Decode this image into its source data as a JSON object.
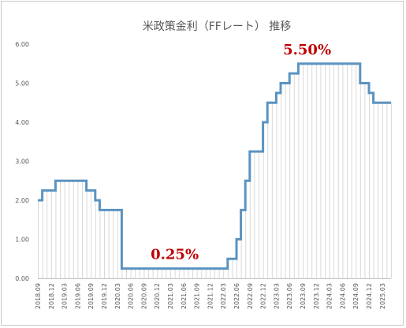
{
  "chart_data": {
    "type": "line",
    "step": true,
    "title": "米政策金利（FFレート） 推移",
    "xlabel": "",
    "ylabel": "",
    "ylim": [
      0,
      6
    ],
    "ytick_labels": [
      "0.00",
      "1.00",
      "2.00",
      "3.00",
      "4.00",
      "5.00",
      "6.00"
    ],
    "x": [
      "2018.09",
      "2018.10",
      "2018.11",
      "2018.12",
      "2019.01",
      "2019.02",
      "2019.03",
      "2019.04",
      "2019.05",
      "2019.06",
      "2019.07",
      "2019.08",
      "2019.09",
      "2019.10",
      "2019.11",
      "2019.12",
      "2020.01",
      "2020.02",
      "2020.03",
      "2020.04",
      "2020.05",
      "2020.06",
      "2020.07",
      "2020.08",
      "2020.09",
      "2020.10",
      "2020.11",
      "2020.12",
      "2021.01",
      "2021.02",
      "2021.03",
      "2021.04",
      "2021.05",
      "2021.06",
      "2021.07",
      "2021.08",
      "2021.09",
      "2021.10",
      "2021.11",
      "2021.12",
      "2022.01",
      "2022.02",
      "2022.03",
      "2022.04",
      "2022.05",
      "2022.06",
      "2022.07",
      "2022.08",
      "2022.09",
      "2022.10",
      "2022.11",
      "2022.12",
      "2023.01",
      "2023.02",
      "2023.03",
      "2023.04",
      "2023.05",
      "2023.06",
      "2023.07",
      "2023.08",
      "2023.09",
      "2023.10",
      "2023.11",
      "2023.12",
      "2024.01",
      "2024.02",
      "2024.03",
      "2024.04",
      "2024.05",
      "2024.06",
      "2024.07",
      "2024.08",
      "2024.09",
      "2024.10",
      "2024.11",
      "2024.12",
      "2025.01",
      "2025.02",
      "2025.03",
      "2025.04",
      "2025.05"
    ],
    "xtick_labels": [
      "2018.09",
      "2018.12",
      "2019.03",
      "2019.06",
      "2019.09",
      "2019.12",
      "2020.03",
      "2020.06",
      "2020.09",
      "2020.12",
      "2021.03",
      "2021.06",
      "2021.09",
      "2021.12",
      "2022.03",
      "2022.06",
      "2022.09",
      "2022.12",
      "2023.03",
      "2023.06",
      "2023.09",
      "2023.12",
      "2024.03",
      "2024.06",
      "2024.09",
      "2024.12",
      "2025.03"
    ],
    "series": [
      {
        "values": [
          2.0,
          2.25,
          2.25,
          2.25,
          2.5,
          2.5,
          2.5,
          2.5,
          2.5,
          2.5,
          2.5,
          2.25,
          2.25,
          2.0,
          1.75,
          1.75,
          1.75,
          1.75,
          1.75,
          0.25,
          0.25,
          0.25,
          0.25,
          0.25,
          0.25,
          0.25,
          0.25,
          0.25,
          0.25,
          0.25,
          0.25,
          0.25,
          0.25,
          0.25,
          0.25,
          0.25,
          0.25,
          0.25,
          0.25,
          0.25,
          0.25,
          0.25,
          0.25,
          0.5,
          0.5,
          1.0,
          1.75,
          2.5,
          3.25,
          3.25,
          3.25,
          4.0,
          4.5,
          4.5,
          4.75,
          5.0,
          5.0,
          5.25,
          5.25,
          5.5,
          5.5,
          5.5,
          5.5,
          5.5,
          5.5,
          5.5,
          5.5,
          5.5,
          5.5,
          5.5,
          5.5,
          5.5,
          5.5,
          5.0,
          5.0,
          4.75,
          4.5,
          4.5,
          4.5,
          4.5,
          4.5
        ]
      }
    ],
    "annotations": [
      {
        "text": "0.25%",
        "x": "2021.04",
        "y": 0.25
      },
      {
        "text": "5.50%",
        "x": "2023.10",
        "y": 5.5
      }
    ],
    "grid": false,
    "colors": {
      "line": "#5b93c0",
      "drop_lines": "#d9d9d9",
      "annotation": "#c00000",
      "axis": "#bfbfbf",
      "text": "#595959"
    }
  }
}
